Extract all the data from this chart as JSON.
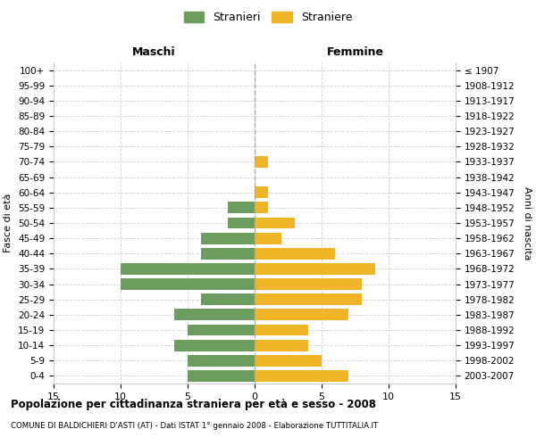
{
  "age_groups": [
    "0-4",
    "5-9",
    "10-14",
    "15-19",
    "20-24",
    "25-29",
    "30-34",
    "35-39",
    "40-44",
    "45-49",
    "50-54",
    "55-59",
    "60-64",
    "65-69",
    "70-74",
    "75-79",
    "80-84",
    "85-89",
    "90-94",
    "95-99",
    "100+"
  ],
  "birth_years": [
    "2003-2007",
    "1998-2002",
    "1993-1997",
    "1988-1992",
    "1983-1987",
    "1978-1982",
    "1973-1977",
    "1968-1972",
    "1963-1967",
    "1958-1962",
    "1953-1957",
    "1948-1952",
    "1943-1947",
    "1938-1942",
    "1933-1937",
    "1928-1932",
    "1923-1927",
    "1918-1922",
    "1913-1917",
    "1908-1912",
    "≤ 1907"
  ],
  "males": [
    5,
    5,
    6,
    5,
    6,
    4,
    10,
    10,
    4,
    4,
    2,
    2,
    0,
    0,
    0,
    0,
    0,
    0,
    0,
    0,
    0
  ],
  "females": [
    7,
    5,
    4,
    4,
    7,
    8,
    8,
    9,
    6,
    2,
    3,
    1,
    1,
    0,
    1,
    0,
    0,
    0,
    0,
    0,
    0
  ],
  "male_color": "#6b9e5e",
  "female_color": "#f0b429",
  "xlim": 15,
  "title": "Popolazione per cittadinanza straniera per età e sesso - 2008",
  "subtitle": "COMUNE DI BALDICHIERI D'ASTI (AT) - Dati ISTAT 1° gennaio 2008 - Elaborazione TUTTITALIA.IT",
  "ylabel_left": "Fasce di età",
  "ylabel_right": "Anni di nascita",
  "legend_male": "Stranieri",
  "legend_female": "Straniere",
  "maschi_label": "Maschi",
  "femmine_label": "Femmine",
  "background_color": "#ffffff",
  "grid_color": "#d0d0d0"
}
